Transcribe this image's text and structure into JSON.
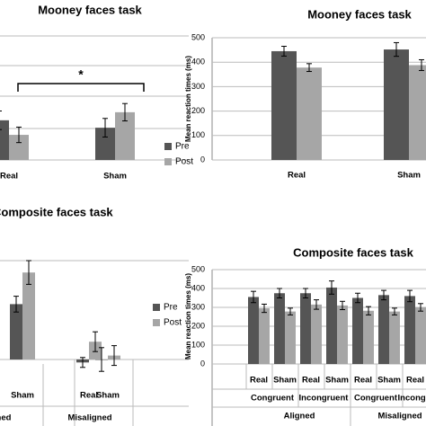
{
  "chart_data": [
    {
      "type": "bar",
      "title": "Mooney faces task",
      "categories": [
        "Real",
        "Sham"
      ],
      "series": [
        {
          "name": "Pre",
          "color": "#555555",
          "values": [
            1.28,
            1.04
          ],
          "errors": [
            0.3,
            0.3
          ]
        },
        {
          "name": "Post",
          "color": "#a6a6a6",
          "values": [
            0.81,
            1.54
          ],
          "errors": [
            0.25,
            0.28
          ]
        }
      ],
      "ylim": [
        0,
        4
      ],
      "annotation": "*",
      "legend": "right"
    },
    {
      "type": "bar",
      "title": "Mooney faces task",
      "ylabel": "Mean reaction times (ms)",
      "categories": [
        "Real",
        "Sham"
      ],
      "series": [
        {
          "name": "Pre",
          "color": "#555555",
          "values": [
            445,
            452
          ],
          "errors": [
            20,
            28
          ]
        },
        {
          "name": "Post",
          "color": "#a6a6a6",
          "values": [
            378,
            388
          ],
          "errors": [
            16,
            22
          ]
        }
      ],
      "ylim": [
        0,
        500
      ],
      "yticks": [
        0,
        100,
        200,
        300,
        400,
        500
      ],
      "grid": true
    },
    {
      "type": "bar",
      "title": "Composite faces task",
      "categories": [
        "Sham",
        "Real",
        "Sham"
      ],
      "category_groups": [
        [
          "Aligned",
          "Misaligned"
        ]
      ],
      "series": [
        {
          "name": "Pre",
          "color": "#555555",
          "values": [
            0.56,
            -0.03,
            0
          ],
          "errors": [
            0.08,
            0.05,
            0.12
          ]
        },
        {
          "name": "Post",
          "color": "#a6a6a6",
          "values": [
            0.88,
            0.18,
            0.04
          ],
          "errors": [
            0.12,
            0.1,
            0.1
          ]
        }
      ],
      "ylim": [
        -0.05,
        1
      ],
      "legend": "right"
    },
    {
      "type": "bar",
      "title": "Composite faces task",
      "ylabel": "Mean reaction times (ms)",
      "categories": [
        "Real",
        "Sham",
        "Real",
        "Sham",
        "Real",
        "Sham",
        "Real"
      ],
      "category_groups": [
        [
          "Congruent",
          "Incongruent",
          "Congruent",
          "Incongruent"
        ],
        [
          "Aligned",
          "Misaligned"
        ]
      ],
      "series": [
        {
          "name": "Pre",
          "color": "#555555",
          "values": [
            355,
            375,
            375,
            405,
            350,
            365,
            360
          ],
          "errors": [
            30,
            25,
            25,
            35,
            25,
            25,
            30
          ]
        },
        {
          "name": "Post",
          "color": "#a6a6a6",
          "values": [
            295,
            278,
            315,
            310,
            282,
            278,
            300
          ],
          "errors": [
            22,
            18,
            25,
            22,
            22,
            18,
            20
          ]
        }
      ],
      "ylim": [
        0,
        500
      ],
      "yticks": [
        0,
        100,
        200,
        300,
        400,
        500
      ],
      "grid": true
    }
  ]
}
